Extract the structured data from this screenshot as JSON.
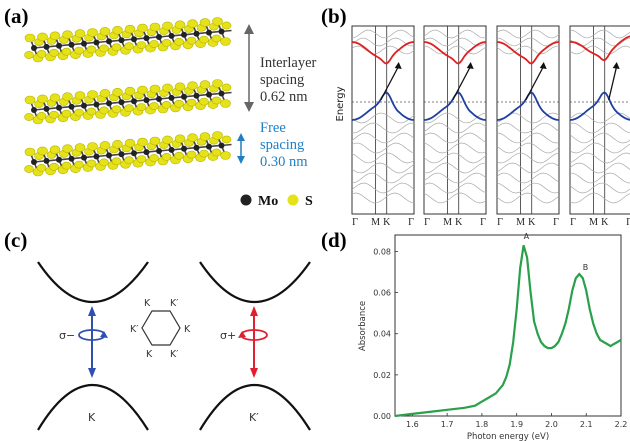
{
  "panels": {
    "a": {
      "label": "(a)",
      "interlayer_label_1": "Interlayer",
      "interlayer_label_2": "spacing",
      "interlayer_value": "0.62 nm",
      "free_label_1": "Free",
      "free_label_2": "spacing",
      "free_value": "0.30 nm",
      "legend_mo": "Mo",
      "legend_s": "S",
      "colors": {
        "sulfur": "#e6e21a",
        "molybdenum": "#222222",
        "free_spacing_text": "#1f7fc4"
      }
    },
    "b": {
      "label": "(b)",
      "ylabel": "Energy",
      "kpoints": [
        "Γ",
        "M",
        "K",
        "Γ"
      ],
      "colors": {
        "conduction": "#e02020",
        "valence": "#2040a0"
      }
    },
    "c": {
      "label": "(c)",
      "sigma_minus": "σ−",
      "sigma_plus": "σ+",
      "valley_k": "K",
      "valley_kp": "K′",
      "hex_labels": [
        "K",
        "K′",
        "K′",
        "K",
        "K",
        "K′"
      ],
      "colors": {
        "sigma_minus": "#3050b0",
        "sigma_plus": "#e02030"
      }
    },
    "d": {
      "label": "(d)",
      "chart_data": {
        "type": "line",
        "xlabel": "Photon energy (eV)",
        "ylabel": "Absorbance",
        "xlim": [
          1.55,
          2.2
        ],
        "ylim": [
          0,
          0.088
        ],
        "xticks": [
          "1.6",
          "1.7",
          "1.8",
          "1.9",
          "2.0",
          "2.1",
          "2.2"
        ],
        "yticks": [
          "0.00",
          "0.02",
          "0.04",
          "0.06",
          "0.08"
        ],
        "peak_labels": [
          {
            "text": "A",
            "x": 1.92,
            "y": 0.086
          },
          {
            "text": "B",
            "x": 2.09,
            "y": 0.071
          }
        ],
        "color": "#2aa04a",
        "series": [
          {
            "x": [
              1.55,
              1.6,
              1.65,
              1.7,
              1.75,
              1.78,
              1.8,
              1.82,
              1.84,
              1.86,
              1.87,
              1.88,
              1.89,
              1.9,
              1.91,
              1.92,
              1.93,
              1.94,
              1.95,
              1.96,
              1.97,
              1.98,
              1.99,
              2.0,
              2.01,
              2.02,
              2.03,
              2.04,
              2.05,
              2.06,
              2.07,
              2.08,
              2.09,
              2.1,
              2.11,
              2.12,
              2.13,
              2.14,
              2.15,
              2.16,
              2.17,
              2.18,
              2.19,
              2.2
            ],
            "y": [
              0.0,
              0.001,
              0.002,
              0.003,
              0.004,
              0.005,
              0.007,
              0.009,
              0.011,
              0.015,
              0.019,
              0.025,
              0.036,
              0.052,
              0.072,
              0.083,
              0.077,
              0.06,
              0.046,
              0.04,
              0.036,
              0.034,
              0.033,
              0.033,
              0.034,
              0.036,
              0.04,
              0.045,
              0.052,
              0.061,
              0.067,
              0.069,
              0.067,
              0.061,
              0.052,
              0.045,
              0.04,
              0.037,
              0.036,
              0.035,
              0.034,
              0.035,
              0.036,
              0.037
            ]
          }
        ]
      }
    }
  }
}
